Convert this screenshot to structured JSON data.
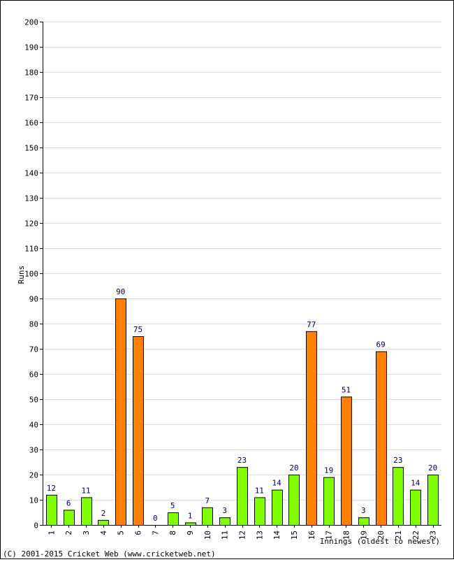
{
  "chart_data": {
    "type": "bar",
    "title": "",
    "xlabel": "Innings (oldest to newest)",
    "ylabel": "Runs",
    "ylim": [
      0,
      200
    ],
    "ytick_step": 10,
    "grid": true,
    "categories": [
      "1",
      "2",
      "3",
      "4",
      "5",
      "6",
      "7",
      "8",
      "9",
      "10",
      "11",
      "12",
      "13",
      "14",
      "15",
      "16",
      "17",
      "18",
      "19",
      "20",
      "21",
      "22",
      "23"
    ],
    "values": [
      12,
      6,
      11,
      2,
      90,
      75,
      0,
      5,
      1,
      7,
      3,
      23,
      11,
      14,
      20,
      77,
      19,
      51,
      3,
      69,
      23,
      14,
      20
    ],
    "series": [
      {
        "name": "",
        "values": [
          12,
          6,
          11,
          2,
          90,
          75,
          0,
          5,
          1,
          7,
          3,
          23,
          11,
          14,
          20,
          77,
          19,
          51,
          3,
          69,
          23,
          14,
          20
        ]
      }
    ],
    "colors": {
      "under_50": "#80ff00",
      "fifty_plus": "#ff8000",
      "bar_outline": "#000000",
      "grid": "#dddddd",
      "value_label": "#000066"
    }
  },
  "footer": {
    "copyright": "(C) 2001-2015 Cricket Web (www.cricketweb.net)"
  }
}
